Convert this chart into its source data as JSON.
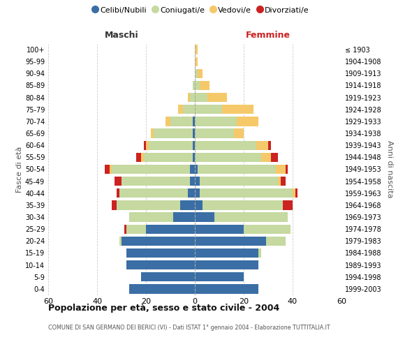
{
  "age_groups": [
    "0-4",
    "5-9",
    "10-14",
    "15-19",
    "20-24",
    "25-29",
    "30-34",
    "35-39",
    "40-44",
    "45-49",
    "50-54",
    "55-59",
    "60-64",
    "65-69",
    "70-74",
    "75-79",
    "80-84",
    "85-89",
    "90-94",
    "95-99",
    "100+"
  ],
  "birth_years": [
    "1999-2003",
    "1994-1998",
    "1989-1993",
    "1984-1988",
    "1979-1983",
    "1974-1978",
    "1969-1973",
    "1964-1968",
    "1959-1963",
    "1954-1958",
    "1949-1953",
    "1944-1948",
    "1939-1943",
    "1934-1938",
    "1929-1933",
    "1924-1928",
    "1919-1923",
    "1914-1918",
    "1909-1913",
    "1904-1908",
    "≤ 1903"
  ],
  "colors": {
    "celibi": "#3a6ea5",
    "coniugati": "#c5d9a0",
    "vedovi": "#f5c96a",
    "divorziati": "#cc2222"
  },
  "males": {
    "celibi": [
      27,
      22,
      28,
      28,
      30,
      20,
      9,
      6,
      3,
      2,
      2,
      1,
      1,
      1,
      1,
      0,
      0,
      0,
      0,
      0,
      0
    ],
    "coniugati": [
      0,
      0,
      0,
      0,
      1,
      8,
      18,
      26,
      28,
      28,
      32,
      20,
      18,
      16,
      9,
      5,
      2,
      1,
      0,
      0,
      0
    ],
    "vedovi": [
      0,
      0,
      0,
      0,
      0,
      0,
      0,
      0,
      0,
      0,
      1,
      1,
      1,
      1,
      2,
      2,
      1,
      0,
      0,
      0,
      0
    ],
    "divorziati": [
      0,
      0,
      0,
      0,
      0,
      1,
      0,
      2,
      1,
      3,
      2,
      2,
      1,
      0,
      0,
      0,
      0,
      0,
      0,
      0,
      0
    ]
  },
  "females": {
    "celibi": [
      26,
      20,
      26,
      26,
      29,
      20,
      8,
      3,
      2,
      2,
      1,
      0,
      0,
      0,
      0,
      0,
      0,
      0,
      0,
      0,
      0
    ],
    "coniugati": [
      0,
      0,
      0,
      1,
      8,
      19,
      30,
      33,
      38,
      32,
      32,
      27,
      25,
      16,
      17,
      11,
      5,
      2,
      1,
      0,
      0
    ],
    "vedovi": [
      0,
      0,
      0,
      0,
      0,
      0,
      0,
      0,
      1,
      1,
      4,
      4,
      5,
      4,
      9,
      13,
      8,
      4,
      2,
      1,
      1
    ],
    "divorziati": [
      0,
      0,
      0,
      0,
      0,
      0,
      0,
      4,
      1,
      2,
      1,
      3,
      1,
      0,
      0,
      0,
      0,
      0,
      0,
      0,
      0
    ]
  },
  "title": "Popolazione per età, sesso e stato civile - 2004",
  "subtitle": "COMUNE DI SAN GERMANO DEI BERICI (VI) - Dati ISTAT 1° gennaio 2004 - Elaborazione TUTTITALIA.IT",
  "xlabel_left": "Maschi",
  "xlabel_right": "Femmine",
  "ylabel_left": "Fasce di età",
  "ylabel_right": "Anni di nascita",
  "legend_labels": [
    "Celibi/Nubili",
    "Coniugati/e",
    "Vedovi/e",
    "Divorziati/e"
  ],
  "xlim": 60,
  "background_color": "#ffffff",
  "grid_color": "#cccccc"
}
